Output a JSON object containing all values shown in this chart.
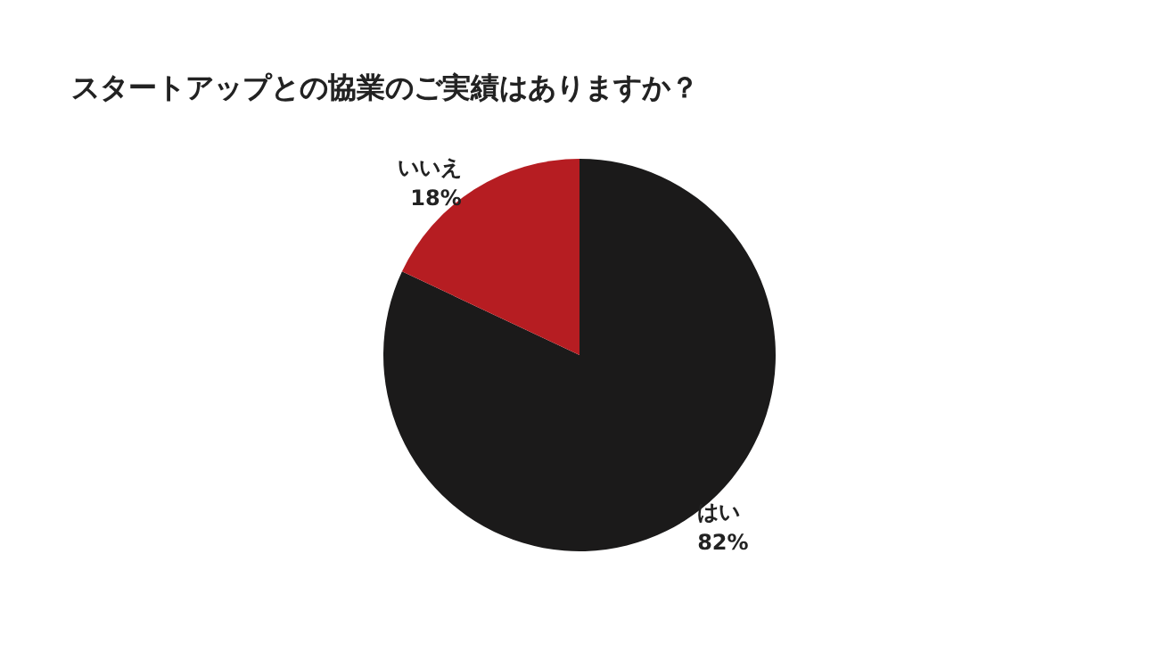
{
  "chart_data": {
    "type": "pie",
    "title": "スタートアップとの協業のご実績はありますか？",
    "categories": [
      "はい",
      "いいえ"
    ],
    "values": [
      82,
      18
    ],
    "colors": [
      "#1b1a1a",
      "#b61d22"
    ],
    "value_labels": [
      "82%",
      "18%"
    ],
    "legend": false
  }
}
